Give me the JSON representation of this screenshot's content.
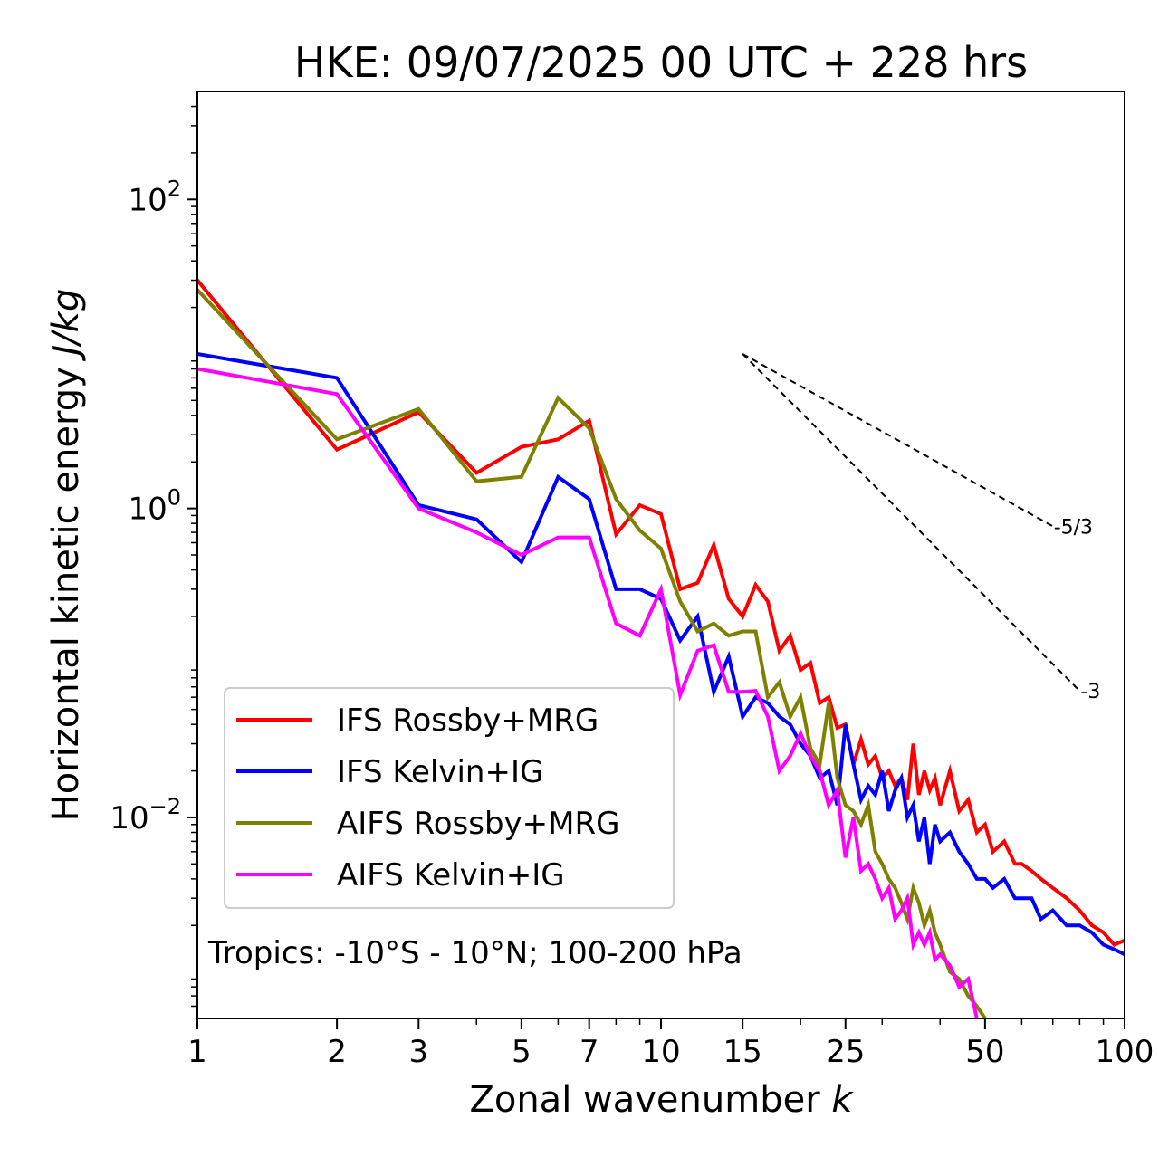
{
  "chart_data": {
    "type": "line",
    "title": "HKE: 09/07/2025 00 UTC + 228 hrs",
    "xlabel": "Zonal wavenumber",
    "xlabel_symbol": "k",
    "ylabel": "Horizontal kinetic energy",
    "ylabel_units": "J/kg",
    "xscale": "log",
    "yscale": "log",
    "xlim": [
      1,
      100
    ],
    "ylim": [
      0.0005,
      500
    ],
    "x_ticks": [
      1,
      2,
      3,
      5,
      7,
      10,
      15,
      25,
      50,
      100
    ],
    "x_tick_labels": [
      "1",
      "2",
      "3",
      "5",
      "7",
      "10",
      "15",
      "25",
      "50",
      "100"
    ],
    "y_ticks": [
      0.01,
      1,
      100
    ],
    "y_tick_labels": [
      {
        "base": "10",
        "exp": "−2"
      },
      {
        "base": "10",
        "exp": "0"
      },
      {
        "base": "10",
        "exp": "2"
      }
    ],
    "annotation": "Tropics: -10°S - 10°N; 100-200 hPa",
    "legend_position": "lower-left",
    "reference_slopes": [
      {
        "label": "-5/3",
        "slope": -1.6667,
        "x_start": 15,
        "x_end": 70,
        "y_start": 10
      },
      {
        "label": "-3",
        "slope": -3,
        "x_start": 15,
        "x_end": 80,
        "y_start": 10
      }
    ],
    "series": [
      {
        "name": "IFS Rossby+MRG",
        "color": "#ff0000",
        "x": [
          1,
          2,
          3,
          4,
          5,
          6,
          7,
          8,
          9,
          10,
          11,
          12,
          13,
          14,
          15,
          16,
          17,
          18,
          19,
          20,
          21,
          22,
          23,
          24,
          25,
          26,
          27,
          28,
          29,
          30,
          31,
          32,
          33,
          34,
          35,
          36,
          37,
          38,
          39,
          40,
          42,
          44,
          46,
          48,
          50,
          52,
          55,
          58,
          60,
          63,
          66,
          70,
          75,
          80,
          85,
          90,
          95,
          100
        ],
        "y": [
          30,
          2.4,
          4.2,
          1.7,
          2.5,
          2.8,
          3.7,
          0.68,
          1.05,
          0.92,
          0.3,
          0.33,
          0.58,
          0.26,
          0.2,
          0.32,
          0.25,
          0.12,
          0.15,
          0.09,
          0.1,
          0.055,
          0.06,
          0.038,
          0.04,
          0.022,
          0.032,
          0.022,
          0.025,
          0.018,
          0.02,
          0.016,
          0.018,
          0.013,
          0.03,
          0.014,
          0.02,
          0.015,
          0.018,
          0.012,
          0.02,
          0.011,
          0.013,
          0.008,
          0.009,
          0.006,
          0.007,
          0.005,
          0.005,
          0.0045,
          0.004,
          0.0035,
          0.003,
          0.0025,
          0.002,
          0.0018,
          0.0015,
          0.0016
        ]
      },
      {
        "name": "IFS Kelvin+IG",
        "color": "#0000ff",
        "x": [
          1,
          2,
          3,
          4,
          5,
          6,
          7,
          8,
          9,
          10,
          11,
          12,
          13,
          14,
          15,
          16,
          17,
          18,
          19,
          20,
          21,
          22,
          23,
          24,
          25,
          26,
          27,
          28,
          29,
          30,
          31,
          32,
          33,
          34,
          35,
          36,
          37,
          38,
          39,
          40,
          42,
          44,
          46,
          48,
          50,
          52,
          55,
          58,
          60,
          63,
          66,
          70,
          75,
          80,
          85,
          90,
          95,
          100
        ],
        "y": [
          10,
          7,
          1.05,
          0.85,
          0.45,
          1.6,
          1.15,
          0.3,
          0.3,
          0.26,
          0.14,
          0.2,
          0.065,
          0.11,
          0.045,
          0.06,
          0.055,
          0.045,
          0.04,
          0.03,
          0.025,
          0.018,
          0.02,
          0.012,
          0.04,
          0.022,
          0.013,
          0.016,
          0.014,
          0.02,
          0.011,
          0.015,
          0.018,
          0.01,
          0.012,
          0.007,
          0.01,
          0.005,
          0.009,
          0.007,
          0.008,
          0.006,
          0.005,
          0.004,
          0.004,
          0.0035,
          0.004,
          0.003,
          0.003,
          0.003,
          0.0022,
          0.0025,
          0.002,
          0.002,
          0.0018,
          0.0015,
          0.0014,
          0.0013
        ]
      },
      {
        "name": "AIFS Rossby+MRG",
        "color": "#808000",
        "x": [
          1,
          2,
          3,
          4,
          5,
          6,
          7,
          8,
          9,
          10,
          11,
          12,
          13,
          14,
          15,
          16,
          17,
          18,
          19,
          20,
          21,
          22,
          23,
          24,
          25,
          26,
          27,
          28,
          29,
          30,
          31,
          32,
          33,
          34,
          35,
          36,
          37,
          38,
          39,
          40,
          42,
          44,
          46,
          48,
          50
        ],
        "y": [
          26,
          2.8,
          4.4,
          1.5,
          1.6,
          5.2,
          3.3,
          1.15,
          0.72,
          0.55,
          0.25,
          0.16,
          0.18,
          0.15,
          0.16,
          0.16,
          0.06,
          0.075,
          0.045,
          0.06,
          0.028,
          0.022,
          0.055,
          0.018,
          0.012,
          0.011,
          0.009,
          0.012,
          0.006,
          0.005,
          0.004,
          0.0035,
          0.0028,
          0.0022,
          0.0035,
          0.0028,
          0.002,
          0.0025,
          0.0018,
          0.0015,
          0.001,
          0.0009,
          0.0007,
          0.0006,
          0.0005
        ]
      },
      {
        "name": "AIFS Kelvin+IG",
        "color": "#ff00ff",
        "x": [
          1,
          2,
          3,
          4,
          5,
          6,
          7,
          8,
          9,
          10,
          11,
          12,
          13,
          14,
          15,
          16,
          17,
          18,
          19,
          20,
          21,
          22,
          23,
          24,
          25,
          26,
          27,
          28,
          29,
          30,
          31,
          32,
          33,
          34,
          35,
          36,
          37,
          38,
          39,
          40,
          42,
          44,
          46,
          48,
          50
        ],
        "y": [
          8,
          5.5,
          1.0,
          0.7,
          0.5,
          0.65,
          0.65,
          0.18,
          0.15,
          0.3,
          0.062,
          0.12,
          0.13,
          0.065,
          0.065,
          0.066,
          0.045,
          0.02,
          0.025,
          0.035,
          0.025,
          0.02,
          0.012,
          0.015,
          0.0055,
          0.01,
          0.0045,
          0.005,
          0.004,
          0.003,
          0.0035,
          0.0022,
          0.0025,
          0.003,
          0.0015,
          0.0018,
          0.0015,
          0.0018,
          0.0012,
          0.0013,
          0.0011,
          0.0008,
          0.0009,
          0.0005,
          0.00045
        ]
      }
    ]
  }
}
